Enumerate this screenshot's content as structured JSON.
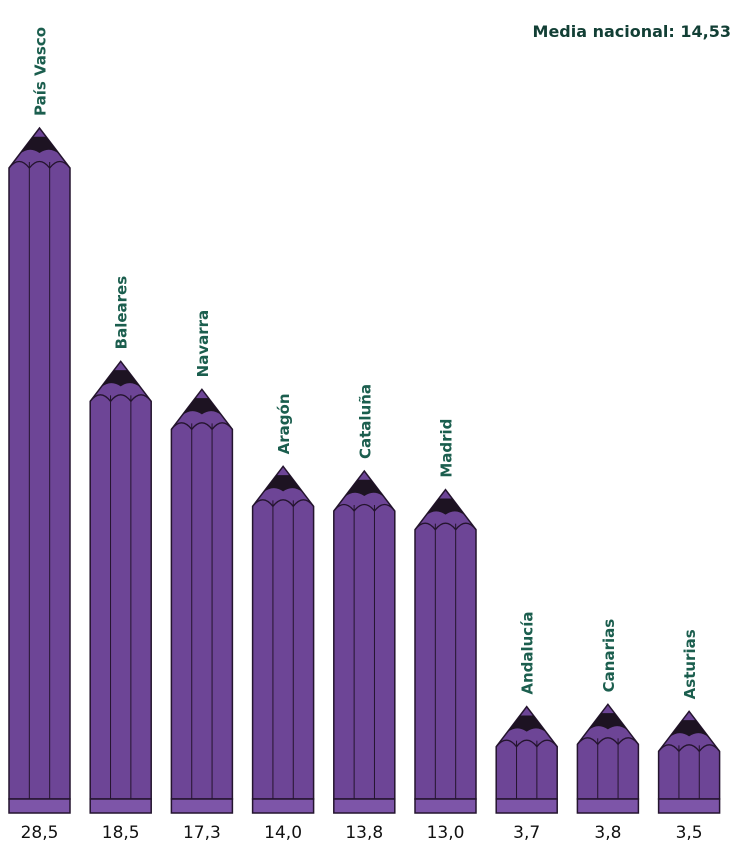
{
  "chart_data": {
    "type": "bar",
    "title": "",
    "xlabel": "",
    "ylabel": "",
    "annotation": "Media nacional: 14,53",
    "categories": [
      "País Vasco",
      "Baleares",
      "Navarra",
      "Aragón",
      "Cataluña",
      "Madrid",
      "Andalucía",
      "Canarias",
      "Asturias"
    ],
    "values": [
      28.5,
      18.5,
      17.3,
      14.0,
      13.8,
      13.0,
      3.7,
      3.8,
      3.5
    ],
    "value_labels": [
      "28,5",
      "18,5",
      "17,3",
      "14,0",
      "13,8",
      "13,0",
      "3,7",
      "3,8",
      "3,5"
    ],
    "colors": {
      "bar": "#6d4596",
      "bar_light": "#7d55a8",
      "tip": "#1d1322",
      "outline": "#24142e",
      "category_text": "#1b5e4e",
      "value_text": "#111111",
      "annotation_text": "#123f35"
    }
  }
}
